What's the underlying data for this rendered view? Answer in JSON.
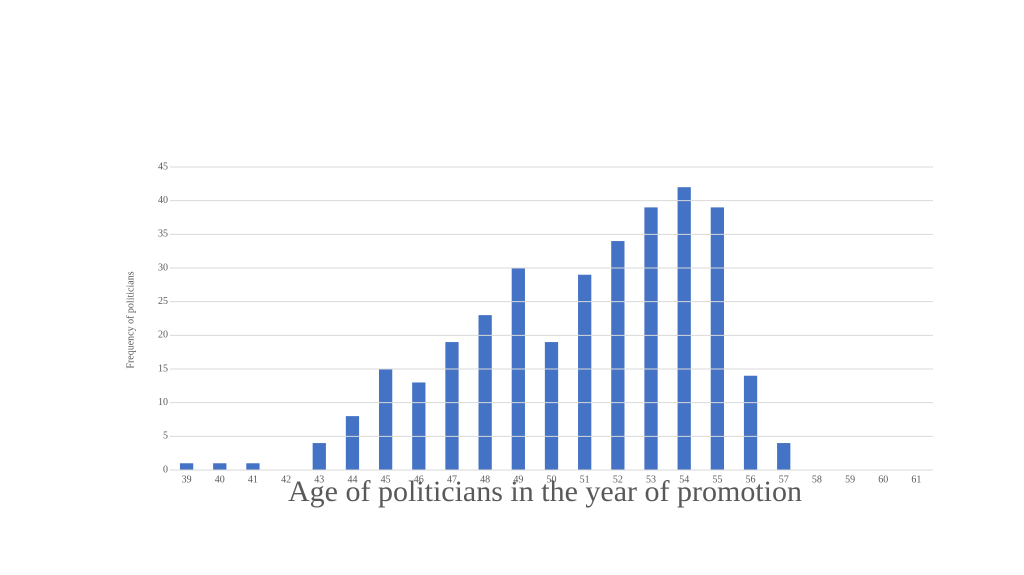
{
  "chart_data": {
    "type": "bar",
    "x_label": "Age of politicians in the year of promotion",
    "y_label": "Frequency of politicians",
    "categories": [
      "39",
      "40",
      "41",
      "42",
      "43",
      "44",
      "45",
      "46",
      "47",
      "48",
      "49",
      "50",
      "51",
      "52",
      "53",
      "54",
      "55",
      "56",
      "57",
      "58",
      "59",
      "60",
      "61"
    ],
    "values": [
      1,
      1,
      1,
      0,
      4,
      8,
      15,
      13,
      19,
      23,
      30,
      19,
      29,
      34,
      39,
      42,
      39,
      14,
      4,
      0,
      0,
      0,
      0
    ],
    "color": "#4472c4",
    "ylim": [
      0,
      45
    ],
    "yticks": [
      0,
      5,
      10,
      15,
      20,
      25,
      30,
      35,
      40,
      45
    ],
    "grid": true
  }
}
